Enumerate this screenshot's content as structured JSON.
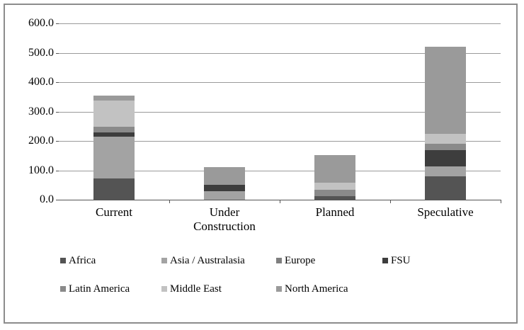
{
  "window": {
    "background": "#ffffff",
    "border_color": "#8c8c8c"
  },
  "chart_data": {
    "type": "bar",
    "stacked": true,
    "title": "",
    "xlabel": "",
    "ylabel": "",
    "categories": [
      "Current",
      "Under Construction",
      "Planned",
      "Speculative"
    ],
    "series": [
      {
        "name": "Africa",
        "color": "#545454",
        "values": [
          72,
          0,
          13,
          79
        ]
      },
      {
        "name": "Asia / Australasia",
        "color": "#a3a3a3",
        "values": [
          143,
          28,
          0,
          34
        ]
      },
      {
        "name": "Europe",
        "color": "#7f7f7f",
        "values": [
          0,
          0,
          0,
          0
        ]
      },
      {
        "name": "FSU",
        "color": "#3d3d3d",
        "values": [
          13,
          22,
          0,
          56
        ]
      },
      {
        "name": "Latin America",
        "color": "#8a8a8a",
        "values": [
          20,
          0,
          20,
          22
        ]
      },
      {
        "name": "Middle East",
        "color": "#c2c2c2",
        "values": [
          90,
          0,
          25,
          32
        ]
      },
      {
        "name": "North America",
        "color": "#9a9a9a",
        "values": [
          17,
          61,
          94,
          297
        ]
      }
    ],
    "bar_totals": [
      355,
      111,
      152,
      520
    ],
    "y_axis": {
      "min": 0,
      "max": 600,
      "step": 100,
      "tick_labels": [
        "600.0",
        "500.0",
        "400.0",
        "300.0",
        "200.0",
        "100.0",
        "0.0"
      ]
    },
    "grid": true,
    "legend_position": "bottom",
    "legend_rows": [
      [
        "Africa",
        "Asia / Australasia",
        "Europe",
        "FSU"
      ],
      [
        "Latin America",
        "Middle East",
        "North America"
      ]
    ]
  }
}
